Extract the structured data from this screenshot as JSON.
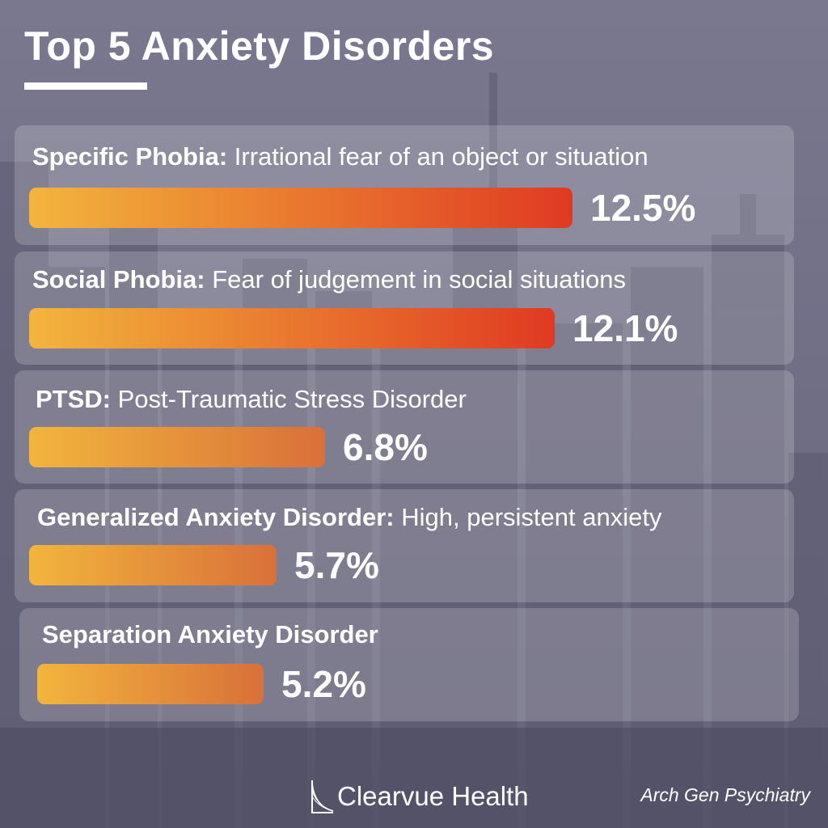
{
  "colors": {
    "bar_start": "#f2b53c",
    "bar_end_high": "#e03a22",
    "bar_end_low": "#d9703a",
    "panel": "rgba(255,255,255,0.18)",
    "text": "#ffffff"
  },
  "chart_data": {
    "type": "bar",
    "orientation": "horizontal",
    "title": "Top 5 Anxiety Disorders",
    "categories": [
      "Specific Phobia",
      "Social Phobia",
      "PTSD",
      "Generalized Anxiety Disorder",
      "Separation Anxiety Disorder"
    ],
    "values": [
      12.5,
      12.1,
      6.8,
      5.7,
      5.2
    ],
    "unit": "%",
    "items": [
      {
        "name": "Specific Phobia:",
        "description": "Irrational fear of an object or situation",
        "value": 12.5,
        "value_label": "12.5%"
      },
      {
        "name": "Social Phobia:",
        "description": "Fear of judgement in social situations",
        "value": 12.1,
        "value_label": "12.1%"
      },
      {
        "name": "PTSD:",
        "description": "Post-Traumatic Stress Disorder",
        "value": 6.8,
        "value_label": "6.8%"
      },
      {
        "name": "Generalized Anxiety Disorder:",
        "description": "High, persistent anxiety",
        "value": 5.7,
        "value_label": "5.7%"
      },
      {
        "name": "Separation Anxiety Disorder",
        "description": "",
        "value": 5.2,
        "value_label": "5.2%"
      }
    ],
    "xlim": [
      0,
      12.5
    ],
    "grid": false,
    "legend": "none"
  },
  "footer": {
    "brand": "Clearvue Health",
    "brand_icon": "curve-logo-icon",
    "source": "Arch Gen Psychiatry"
  }
}
